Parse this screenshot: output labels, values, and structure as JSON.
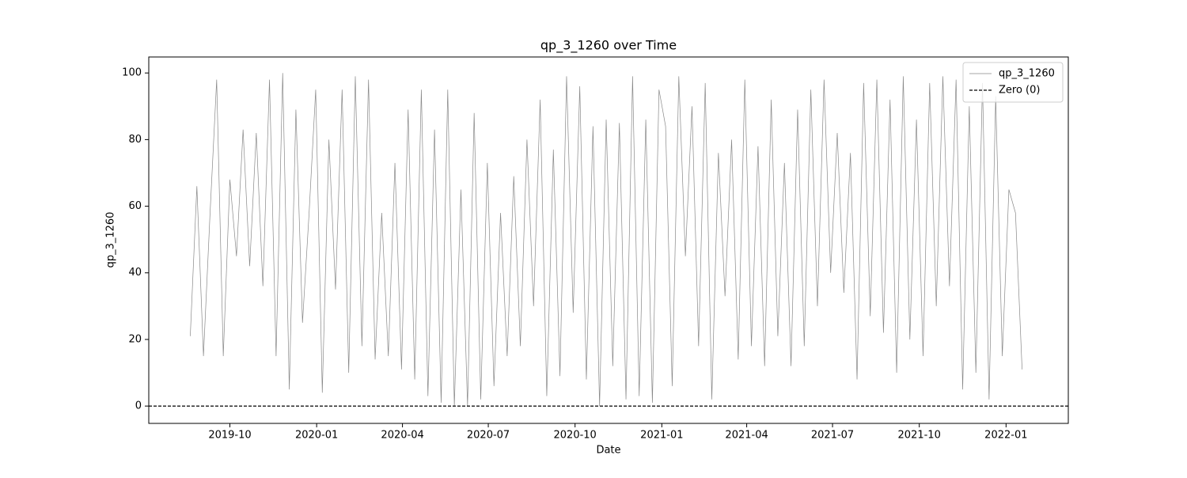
{
  "chart_data": {
    "type": "line",
    "title": "qp_3_1260 over Time",
    "xlabel": "Date",
    "ylabel": "qp_3_1260",
    "x": [
      "2019-08-20",
      "2019-08-27",
      "2019-09-03",
      "2019-09-10",
      "2019-09-17",
      "2019-09-24",
      "2019-10-01",
      "2019-10-08",
      "2019-10-15",
      "2019-10-22",
      "2019-10-29",
      "2019-11-05",
      "2019-11-12",
      "2019-11-19",
      "2019-11-26",
      "2019-12-03",
      "2019-12-10",
      "2019-12-17",
      "2019-12-24",
      "2019-12-31",
      "2020-01-07",
      "2020-01-14",
      "2020-01-21",
      "2020-01-28",
      "2020-02-04",
      "2020-02-11",
      "2020-02-18",
      "2020-02-25",
      "2020-03-03",
      "2020-03-10",
      "2020-03-17",
      "2020-03-24",
      "2020-03-31",
      "2020-04-07",
      "2020-04-14",
      "2020-04-21",
      "2020-04-28",
      "2020-05-05",
      "2020-05-12",
      "2020-05-19",
      "2020-05-26",
      "2020-06-02",
      "2020-06-09",
      "2020-06-16",
      "2020-06-23",
      "2020-06-30",
      "2020-07-07",
      "2020-07-14",
      "2020-07-21",
      "2020-07-28",
      "2020-08-04",
      "2020-08-11",
      "2020-08-18",
      "2020-08-25",
      "2020-09-01",
      "2020-09-08",
      "2020-09-15",
      "2020-09-22",
      "2020-09-29",
      "2020-10-06",
      "2020-10-13",
      "2020-10-20",
      "2020-10-27",
      "2020-11-03",
      "2020-11-10",
      "2020-11-17",
      "2020-11-24",
      "2020-12-01",
      "2020-12-08",
      "2020-12-15",
      "2020-12-22",
      "2020-12-29",
      "2021-01-05",
      "2021-01-12",
      "2021-01-19",
      "2021-01-26",
      "2021-02-02",
      "2021-02-09",
      "2021-02-16",
      "2021-02-23",
      "2021-03-02",
      "2021-03-09",
      "2021-03-16",
      "2021-03-23",
      "2021-03-30",
      "2021-04-06",
      "2021-04-13",
      "2021-04-20",
      "2021-04-27",
      "2021-05-04",
      "2021-05-11",
      "2021-05-18",
      "2021-05-25",
      "2021-06-01",
      "2021-06-08",
      "2021-06-15",
      "2021-06-22",
      "2021-06-29",
      "2021-07-06",
      "2021-07-13",
      "2021-07-20",
      "2021-07-27",
      "2021-08-03",
      "2021-08-10",
      "2021-08-17",
      "2021-08-24",
      "2021-08-31",
      "2021-09-07",
      "2021-09-14",
      "2021-09-21",
      "2021-09-28",
      "2021-10-05",
      "2021-10-12",
      "2021-10-19",
      "2021-10-26",
      "2021-11-02",
      "2021-11-09",
      "2021-11-16",
      "2021-11-23",
      "2021-11-30",
      "2021-12-07",
      "2021-12-14",
      "2021-12-21",
      "2021-12-28",
      "2022-01-04",
      "2022-01-11",
      "2022-01-18"
    ],
    "series": [
      {
        "name": "qp_3_1260",
        "color": "#888888",
        "values": [
          21,
          66,
          15,
          58,
          98,
          15,
          68,
          45,
          83,
          42,
          82,
          36,
          98,
          15,
          100,
          5,
          89,
          25,
          58,
          95,
          4,
          80,
          35,
          95,
          10,
          99,
          18,
          98,
          14,
          58,
          15,
          73,
          11,
          89,
          8,
          95,
          3,
          83,
          1,
          95,
          0,
          65,
          0,
          88,
          2,
          73,
          6,
          58,
          15,
          69,
          18,
          80,
          30,
          92,
          3,
          77,
          9,
          99,
          28,
          96,
          8,
          84,
          0,
          86,
          12,
          85,
          2,
          99,
          3,
          86,
          1,
          95,
          84,
          6,
          99,
          45,
          90,
          18,
          97,
          2,
          76,
          33,
          80,
          14,
          98,
          18,
          78,
          12,
          92,
          21,
          73,
          12,
          89,
          18,
          95,
          30,
          98,
          40,
          82,
          34,
          76,
          8,
          97,
          27,
          98,
          22,
          92,
          10,
          99,
          20,
          86,
          15,
          97,
          30,
          99,
          36,
          98,
          5,
          90,
          10,
          97,
          2,
          93,
          15,
          65,
          58,
          11
        ]
      }
    ],
    "hline": {
      "name": "Zero (0)",
      "value": 0,
      "color": "#000000"
    },
    "xlim": [
      "2019-07-07",
      "2022-03-08"
    ],
    "xticks": [
      {
        "value": "2019-10-01",
        "label": "2019-10"
      },
      {
        "value": "2020-01-01",
        "label": "2020-01"
      },
      {
        "value": "2020-04-01",
        "label": "2020-04"
      },
      {
        "value": "2020-07-01",
        "label": "2020-07"
      },
      {
        "value": "2020-10-01",
        "label": "2020-10"
      },
      {
        "value": "2021-01-01",
        "label": "2021-01"
      },
      {
        "value": "2021-04-01",
        "label": "2021-04"
      },
      {
        "value": "2021-07-01",
        "label": "2021-07"
      },
      {
        "value": "2021-10-01",
        "label": "2021-10"
      },
      {
        "value": "2022-01-01",
        "label": "2022-01"
      }
    ],
    "ylim": [
      -5.2,
      104.8
    ],
    "yticks": [
      0,
      20,
      40,
      60,
      80,
      100
    ],
    "legend": "upper right",
    "grid": false
  }
}
